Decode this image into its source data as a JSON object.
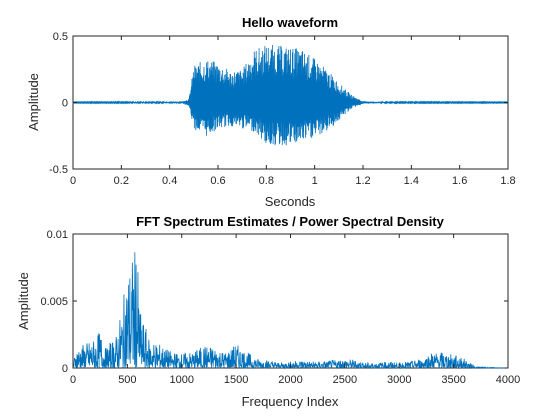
{
  "chart_data": [
    {
      "type": "line",
      "title": "Hello waveform",
      "xlabel": "Seconds",
      "ylabel": "Amplitude",
      "xlim": [
        0,
        1.8
      ],
      "ylim": [
        -0.5,
        0.5
      ],
      "xticks": [
        0,
        0.2,
        0.4,
        0.6,
        0.8,
        1,
        1.2,
        1.4,
        1.6,
        1.8
      ],
      "yticks": [
        -0.5,
        0,
        0.5
      ],
      "grid": false,
      "color": "#0072BD",
      "series": [
        {
          "x": [
            0,
            0.45,
            0.48,
            0.5,
            0.55,
            0.6,
            0.65,
            0.7,
            0.75,
            0.8,
            0.85,
            0.9,
            0.95,
            1.0,
            1.05,
            1.1,
            1.15,
            1.2,
            1.3,
            1.8
          ],
          "y_max": [
            0.003,
            0.005,
            0.03,
            0.28,
            0.33,
            0.3,
            0.24,
            0.25,
            0.4,
            0.44,
            0.43,
            0.42,
            0.4,
            0.33,
            0.25,
            0.15,
            0.06,
            0.01,
            0.004,
            0.003
          ],
          "y_min": [
            -0.003,
            -0.005,
            -0.03,
            -0.2,
            -0.26,
            -0.2,
            -0.18,
            -0.2,
            -0.22,
            -0.32,
            -0.33,
            -0.33,
            -0.3,
            -0.27,
            -0.22,
            -0.14,
            -0.05,
            -0.01,
            -0.004,
            -0.003
          ]
        }
      ]
    },
    {
      "type": "line",
      "title": "FFT Spectrum Estimates / Power Spectral Density",
      "xlabel": "Frequency Index",
      "ylabel": "Amplitude",
      "xlim": [
        0,
        4000
      ],
      "ylim": [
        0,
        0.01
      ],
      "xticks": [
        0,
        500,
        1000,
        1500,
        2000,
        2500,
        3000,
        3500,
        4000
      ],
      "yticks": [
        0,
        0.005,
        0.01
      ],
      "grid": false,
      "color": "#0072BD",
      "series": [
        {
          "x": [
            0,
            30,
            100,
            200,
            250,
            300,
            400,
            450,
            500,
            550,
            580,
            620,
            700,
            800,
            900,
            1000,
            1100,
            1200,
            1300,
            1400,
            1500,
            1600,
            1700,
            1800,
            1900,
            2000,
            2100,
            2200,
            2300,
            2400,
            2500,
            2600,
            2700,
            2800,
            2900,
            3000,
            3100,
            3200,
            3300,
            3400,
            3500,
            3550,
            3600,
            3700,
            4000
          ],
          "y": [
            0.0003,
            0.0015,
            0.0018,
            0.0022,
            0.0028,
            0.0015,
            0.0025,
            0.0045,
            0.0072,
            0.0085,
            0.0094,
            0.0042,
            0.0022,
            0.0018,
            0.0012,
            0.0011,
            0.0012,
            0.0017,
            0.0016,
            0.0012,
            0.0018,
            0.0012,
            0.0007,
            0.0006,
            0.0004,
            0.0005,
            0.0006,
            0.0005,
            0.0005,
            0.0006,
            0.0007,
            0.0006,
            0.0004,
            0.0004,
            0.0005,
            0.0004,
            0.0005,
            0.0007,
            0.0012,
            0.0012,
            0.001,
            0.0009,
            0.0007,
            0.0001,
            0.0
          ]
        }
      ]
    }
  ]
}
